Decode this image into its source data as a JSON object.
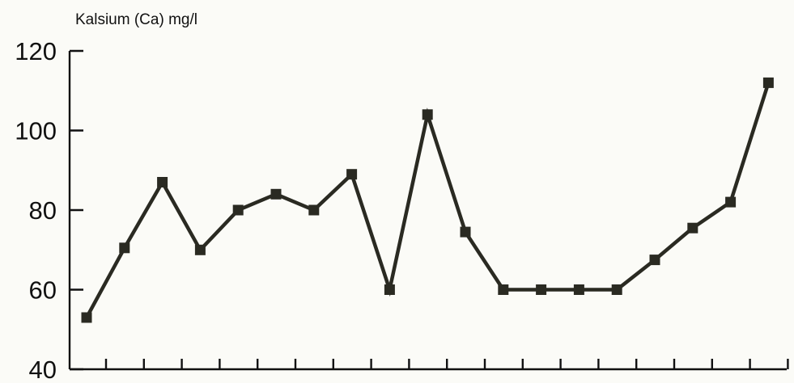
{
  "chart_data": {
    "type": "line",
    "ylabel": "Kalsium (Ca) mg/l",
    "ylim": [
      40,
      120
    ],
    "yticks": [
      40,
      60,
      80,
      100,
      120
    ],
    "x": [
      1,
      2,
      3,
      4,
      5,
      6,
      7,
      8,
      9,
      10,
      11,
      12,
      13,
      14,
      15,
      16,
      17,
      18,
      19
    ],
    "series": [
      {
        "values": [
          53,
          70.5,
          87,
          70,
          80,
          84,
          80,
          89,
          60,
          104,
          74.5,
          60,
          60,
          60,
          60,
          67.5,
          75.5,
          82,
          112
        ],
        "color": "#2a2a22"
      }
    ],
    "grid": false
  }
}
